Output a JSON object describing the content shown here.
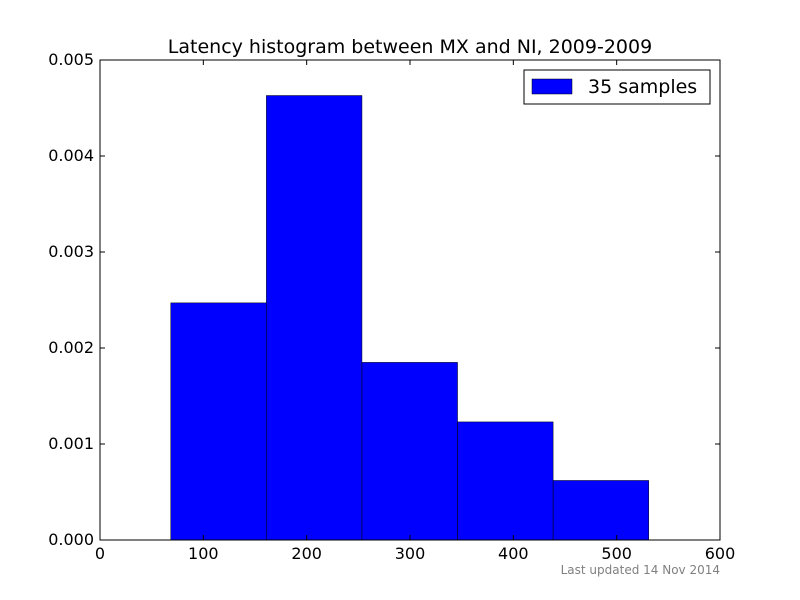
{
  "chart_data": {
    "type": "bar",
    "title": "Latency histogram between MX and NI, 2009-2009",
    "xlabel": "",
    "ylabel": "",
    "xlim": [
      0,
      600
    ],
    "ylim": [
      0,
      0.005
    ],
    "x_ticks": [
      0,
      100,
      200,
      300,
      400,
      500,
      600
    ],
    "x_tick_labels": [
      "0",
      "100",
      "200",
      "300",
      "400",
      "500",
      "600"
    ],
    "y_ticks": [
      0,
      0.001,
      0.002,
      0.003,
      0.004,
      0.005
    ],
    "y_tick_labels": [
      "0.000",
      "0.001",
      "0.002",
      "0.003",
      "0.004",
      "0.005"
    ],
    "bins": [
      {
        "start": 68.5,
        "end": 161.0,
        "value": 0.00247
      },
      {
        "start": 161.0,
        "end": 253.5,
        "value": 0.00463
      },
      {
        "start": 253.5,
        "end": 346.0,
        "value": 0.00185
      },
      {
        "start": 346.0,
        "end": 438.5,
        "value": 0.00123
      },
      {
        "start": 438.5,
        "end": 531.0,
        "value": 0.00062
      }
    ],
    "series": [
      {
        "name": "35 samples",
        "color": "#0000ff"
      }
    ],
    "legend_position": "top-right",
    "grid": false
  },
  "footer": {
    "updated": "Last updated 14 Nov 2014"
  }
}
